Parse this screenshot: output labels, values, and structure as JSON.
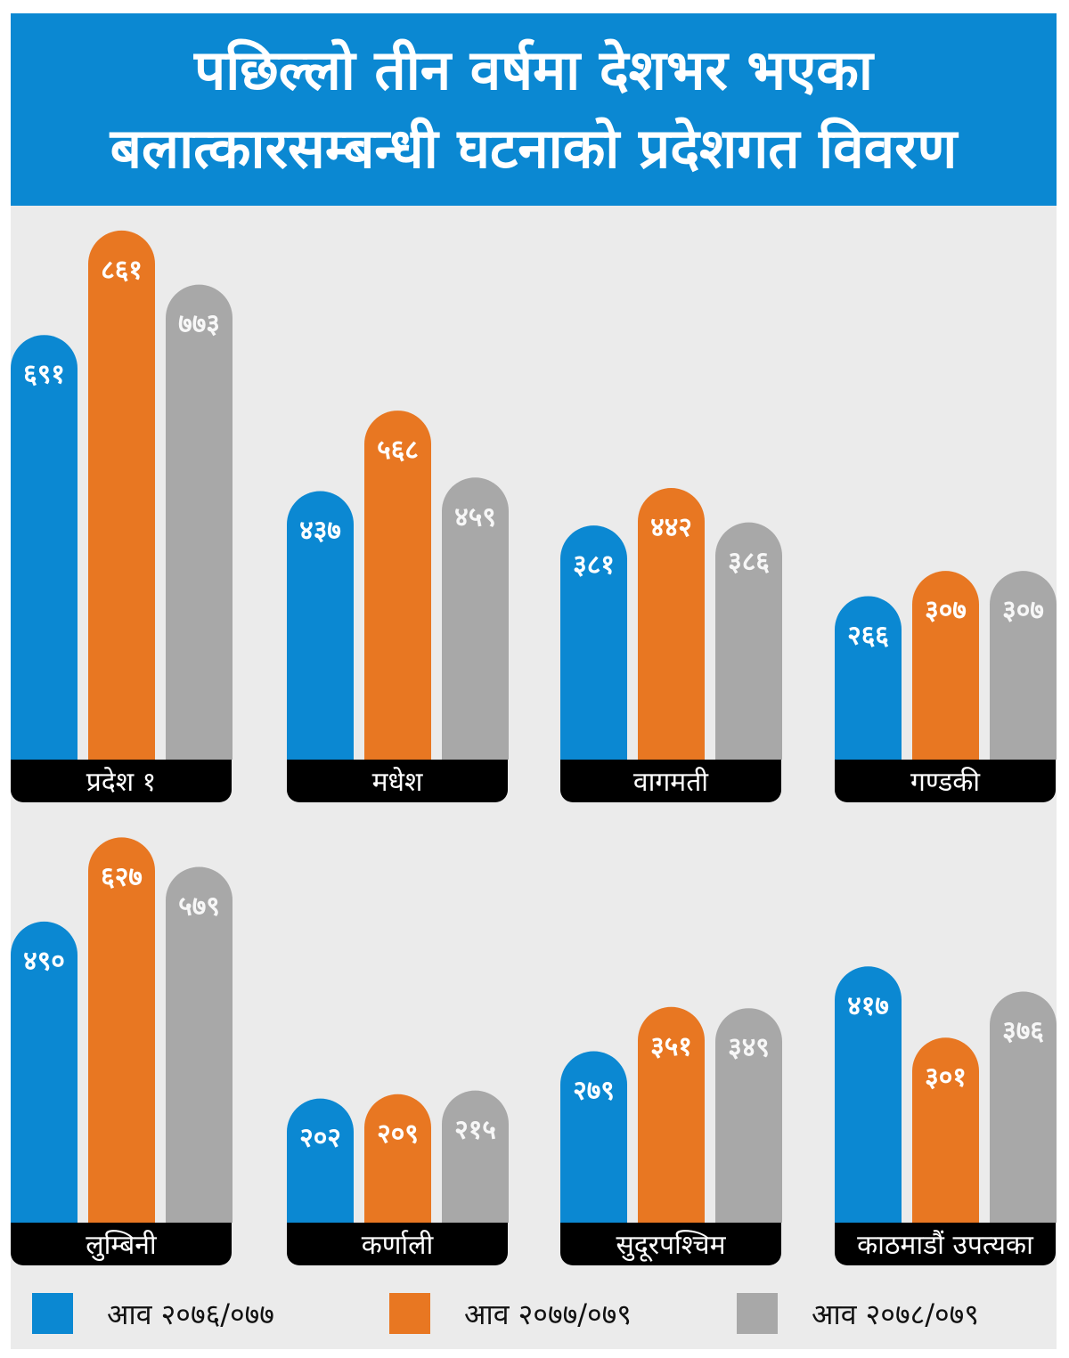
{
  "title": {
    "line1": "पछिल्लो तीन वर्षमा देशभर भएका",
    "line2": "बलात्कारसम्बन्धी घटनाको प्रदेशगत विवरण"
  },
  "colors": {
    "title_band": "#0b88d2",
    "background": "#ebebeb",
    "series": [
      "#0b88d2",
      "#e87722",
      "#a8a8a8"
    ],
    "label_bar": "#000000"
  },
  "legend": [
    {
      "label": "आव २०७६/०७७",
      "color": "#0b88d2"
    },
    {
      "label": "आव २०७७/०७९",
      "color": "#e87722"
    },
    {
      "label": "आव २०७८/०७९",
      "color": "#a8a8a8"
    }
  ],
  "chart_data": {
    "type": "bar",
    "layout": "small-multiples, 2 rows x 4 columns",
    "series": [
      {
        "name": "आव २०७६/०७७"
      },
      {
        "name": "आव २०७७/०७९"
      },
      {
        "name": "आव २०७८/०७९"
      }
    ],
    "groups": [
      {
        "category": "प्रदेश १",
        "values": [
          691,
          861,
          773
        ],
        "labels": [
          "६९१",
          "८६१",
          "७७३"
        ]
      },
      {
        "category": "मधेश",
        "values": [
          437,
          568,
          459
        ],
        "labels": [
          "४३७",
          "५६८",
          "४५९"
        ]
      },
      {
        "category": "वागमती",
        "values": [
          381,
          442,
          386
        ],
        "labels": [
          "३८१",
          "४४२",
          "३८६"
        ]
      },
      {
        "category": "गण्डकी",
        "values": [
          266,
          307,
          307
        ],
        "labels": [
          "२६६",
          "३०७",
          "३०७"
        ]
      },
      {
        "category": "लुम्बिनी",
        "values": [
          490,
          627,
          579
        ],
        "labels": [
          "४९०",
          "६२७",
          "५७९"
        ]
      },
      {
        "category": "कर्णाली",
        "values": [
          202,
          209,
          215
        ],
        "labels": [
          "२०२",
          "२०९",
          "२१५"
        ]
      },
      {
        "category": "सुदूरपश्चिम",
        "values": [
          279,
          351,
          349
        ],
        "labels": [
          "२७९",
          "३५१",
          "३४९"
        ]
      },
      {
        "category": "काठमाडौं उपत्यका",
        "values": [
          417,
          301,
          376
        ],
        "labels": [
          "४१७",
          "३०१",
          "३७६"
        ]
      }
    ],
    "ylim": [
      0,
      900
    ]
  }
}
